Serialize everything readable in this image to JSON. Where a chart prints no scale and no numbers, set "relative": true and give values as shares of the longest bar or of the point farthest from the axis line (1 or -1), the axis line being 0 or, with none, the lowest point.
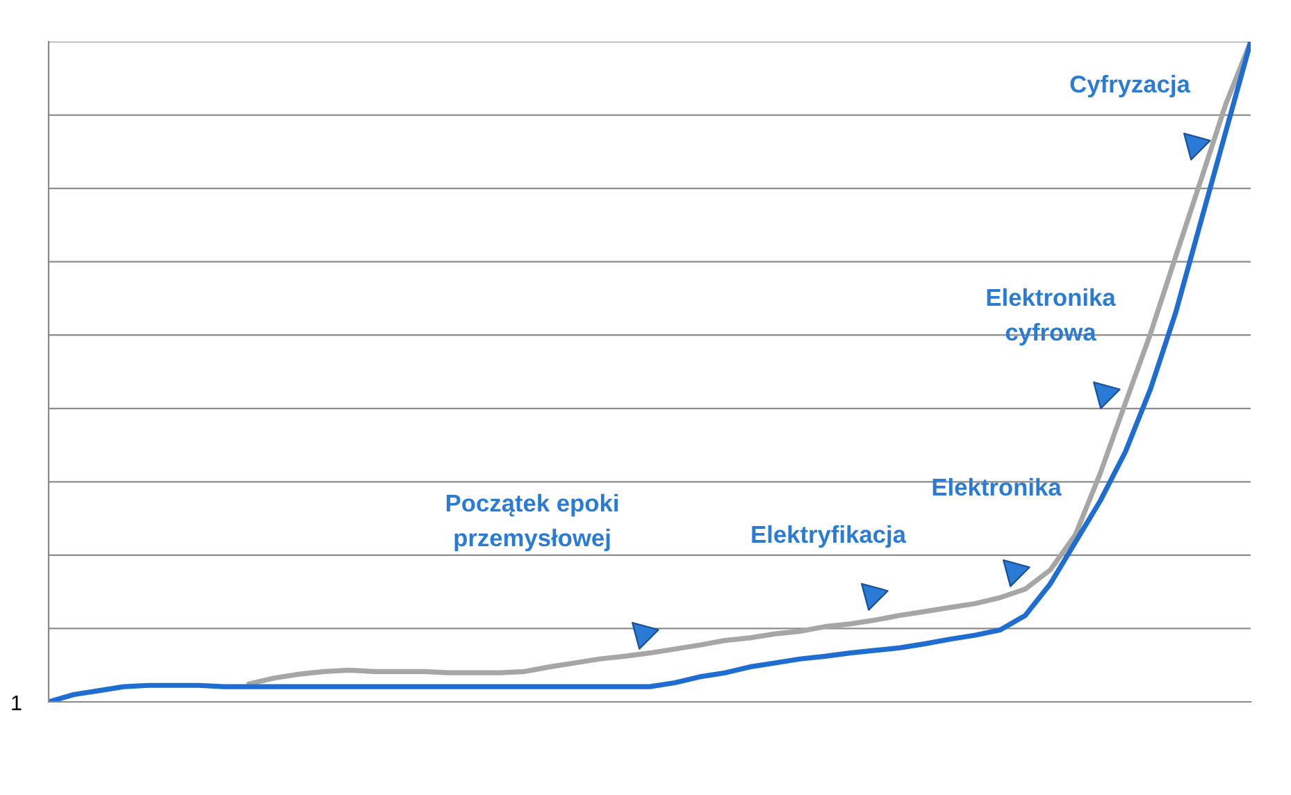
{
  "chart_data": {
    "type": "line",
    "relative": true,
    "grid": "y",
    "legend": false,
    "marker": "none",
    "line_style": "solid",
    "categories": [
      null,
      null,
      null,
      null,
      null,
      null,
      null,
      null,
      null,
      null,
      null,
      null,
      null,
      null,
      null,
      null,
      null,
      null,
      null,
      null,
      null,
      null,
      null,
      null,
      null,
      null,
      null,
      null,
      null,
      null,
      null,
      null,
      null,
      null,
      null,
      null,
      null,
      null,
      null,
      null,
      null,
      null,
      null,
      null,
      null,
      null,
      null,
      null,
      null
    ],
    "series": [
      {
        "color": "#a6a6a6",
        "values": [
          null,
          null,
          null,
          null,
          null,
          null,
          null,
          null,
          0.027,
          0.036,
          0.042,
          0.046,
          0.048,
          0.046,
          0.046,
          0.046,
          0.044,
          0.044,
          0.044,
          0.046,
          0.053,
          0.059,
          0.065,
          0.069,
          0.074,
          0.08,
          0.086,
          0.093,
          0.097,
          0.103,
          0.107,
          0.114,
          0.118,
          0.124,
          0.131,
          0.137,
          0.143,
          0.149,
          0.158,
          0.171,
          0.2,
          0.253,
          0.347,
          0.453,
          0.558,
          0.674,
          0.789,
          0.905,
          1.0
        ]
      },
      {
        "color": "#1f6dd0",
        "values": [
          0,
          0.011,
          0.017,
          0.023,
          0.025,
          0.025,
          0.025,
          0.023,
          0.023,
          0.023,
          0.023,
          0.023,
          0.023,
          0.023,
          0.023,
          0.023,
          0.023,
          0.023,
          0.023,
          0.023,
          0.023,
          0.023,
          0.023,
          0.023,
          0.023,
          0.029,
          0.038,
          0.044,
          0.053,
          0.059,
          0.065,
          0.069,
          0.074,
          0.078,
          0.082,
          0.088,
          0.095,
          0.101,
          0.109,
          0.131,
          0.179,
          0.242,
          0.305,
          0.379,
          0.474,
          0.589,
          0.726,
          0.863,
          1.0
        ]
      }
    ],
    "annotations": [
      "1",
      "Początek epoki\nprzemysłowej",
      "Elektryfikacja",
      "Elektronika",
      "Elektronika\ncyfrowa",
      "Cyfryzacja"
    ]
  }
}
